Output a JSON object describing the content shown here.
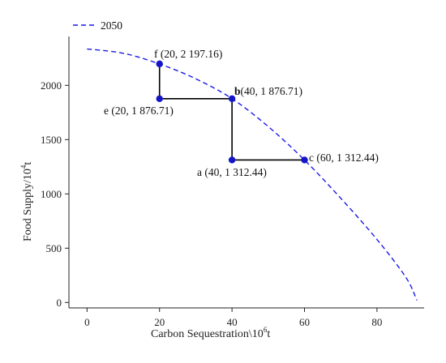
{
  "chart_data": {
    "type": "line",
    "xlabel": "Carbon Sequestration\\10",
    "xlabel_sup": "6",
    "xlabel_tail": "t",
    "ylabel": "Food Supply/10",
    "ylabel_sup": "4",
    "ylabel_tail": "t",
    "xlim": [
      -5,
      93
    ],
    "ylim": [
      -50,
      2450
    ],
    "x_ticks": [
      0,
      20,
      40,
      60,
      80
    ],
    "x_tick_labels": [
      "0",
      "20",
      "40",
      "60",
      "80"
    ],
    "y_ticks": [
      0,
      500,
      1000,
      1500,
      2000
    ],
    "y_tick_labels": [
      "0",
      "500",
      "1000",
      "1500",
      "2000"
    ],
    "grid": false,
    "legend_position": "top-left",
    "series": [
      {
        "name": "2050",
        "color": "#1a1ae6",
        "style": "dashed",
        "x": [
          0,
          10,
          20,
          30,
          40,
          50,
          60,
          70,
          80,
          88,
          91
        ],
        "y": [
          2335,
          2295,
          2197,
          2060,
          1877,
          1620,
          1312,
          960,
          580,
          230,
          20
        ]
      }
    ],
    "points": [
      {
        "id": "f",
        "x": 20,
        "y": 2197.16,
        "label": "f (20, 2 197.16)"
      },
      {
        "id": "e",
        "x": 20,
        "y": 1876.71,
        "label": "e (20, 1 876.71)"
      },
      {
        "id": "b",
        "x": 40,
        "y": 1876.71,
        "label_bold": "b",
        "label": "(40, 1 876.71)"
      },
      {
        "id": "a",
        "x": 40,
        "y": 1312.44,
        "label": "a (40, 1 312.44)"
      },
      {
        "id": "c",
        "x": 60,
        "y": 1312.44,
        "label": "c (60, 1 312.44)"
      }
    ],
    "path_points": [
      "f",
      "e",
      "b",
      "a",
      "c"
    ],
    "point_color": "#1515c8",
    "path_color": "#000000"
  }
}
